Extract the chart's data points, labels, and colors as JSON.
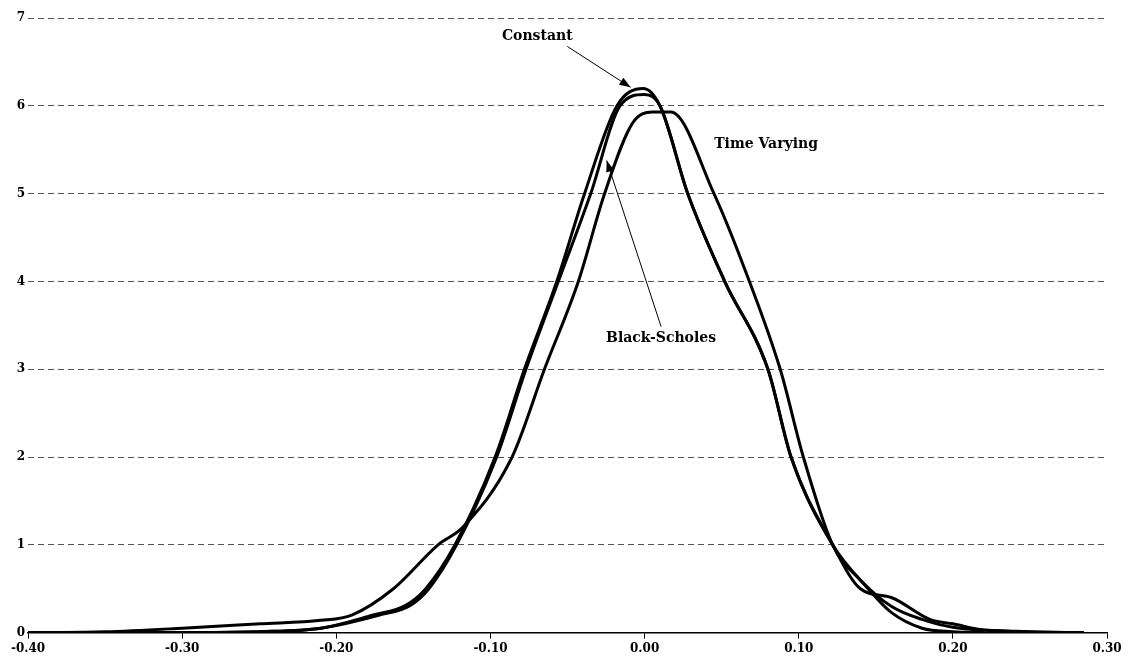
{
  "chart_data": {
    "type": "line",
    "xlim": [
      -0.4,
      0.3
    ],
    "xticks": [
      {
        "value": -0.4,
        "label": "-0.40"
      },
      {
        "value": -0.3,
        "label": "-0.30"
      },
      {
        "value": -0.2,
        "label": "-0.20"
      },
      {
        "value": -0.1,
        "label": "-0.10"
      },
      {
        "value": 0,
        "label": "0.00"
      },
      {
        "value": 0.1,
        "label": "0.10"
      },
      {
        "value": 0.2,
        "label": "0.20"
      },
      {
        "value": 0.3,
        "label": "0.30"
      }
    ],
    "ylim": [
      0,
      7
    ],
    "yticks": [
      0,
      1,
      2,
      3,
      4,
      5,
      6,
      7
    ],
    "grid": "y",
    "line_style": "solid",
    "marker": "none",
    "legend": false,
    "series": [
      {
        "color": "#000000",
        "x": [
          -0.4,
          -0.3,
          -0.25,
          -0.21,
          -0.176,
          -0.155,
          -0.142,
          -0.123,
          -0.097,
          -0.078,
          -0.057,
          -0.039,
          -0.018,
          -0.001,
          0.01,
          0.028,
          0.052,
          0.08,
          0.095,
          0.122,
          0.14,
          0.16,
          0.185,
          0.2,
          0.22,
          0.28
        ],
        "values": [
          0,
          0,
          0.01,
          0.05,
          0.2,
          0.31,
          0.5,
          1,
          2,
          3,
          4,
          5,
          6,
          6.2,
          6,
          5,
          4,
          3,
          2,
          1,
          0.5,
          0.4,
          0.15,
          0.1,
          0.03,
          0
        ]
      },
      {
        "color": "#000000",
        "x": [
          -0.4,
          -0.3,
          -0.25,
          -0.21,
          -0.172,
          -0.152,
          -0.14,
          -0.122,
          -0.096,
          -0.077,
          -0.056,
          -0.035,
          -0.016,
          0,
          0.01,
          0.028,
          0.052,
          0.08,
          0.095,
          0.122,
          0.145,
          0.16,
          0.18,
          0.2,
          0.22
        ],
        "values": [
          0,
          0,
          0.01,
          0.05,
          0.2,
          0.31,
          0.5,
          1,
          2,
          3,
          4,
          5,
          6,
          6.13,
          6,
          5,
          4,
          3,
          2,
          1,
          0.5,
          0.23,
          0.05,
          0.01,
          0
        ]
      },
      {
        "color": "#000000",
        "x": [
          -0.4,
          -0.35,
          -0.3,
          -0.25,
          -0.21,
          -0.19,
          -0.163,
          -0.134,
          -0.118,
          -0.086,
          -0.065,
          -0.043,
          -0.026,
          -0.008,
          0.005,
          0.017,
          0.045,
          0.068,
          0.088,
          0.103,
          0.122,
          0.14,
          0.16,
          0.18,
          0.2,
          0.25,
          0.285
        ],
        "values": [
          0,
          0.01,
          0.05,
          0.1,
          0.14,
          0.2,
          0.5,
          1,
          1.2,
          2,
          3,
          4,
          5,
          5.8,
          5.93,
          5.93,
          5,
          4,
          3,
          2,
          1,
          0.6,
          0.3,
          0.15,
          0.06,
          0.01,
          0
        ]
      }
    ],
    "annotations": [
      {
        "text": "Constant",
        "x": -0.008,
        "y": 6.2
      },
      {
        "text": "Black-Scholes",
        "x": -0.025,
        "y": 5.4
      },
      "Time Varying"
    ]
  }
}
